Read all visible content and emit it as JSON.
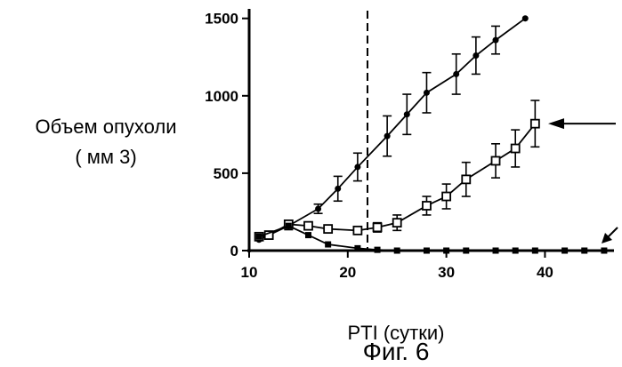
{
  "chart_data": {
    "type": "line",
    "title": "",
    "ylabel_line1": "Объем опухоли",
    "ylabel_line2": "( мм 3)",
    "xlabel": "PTI (сутки)",
    "caption": "Фиг. 6",
    "xlim": [
      10,
      47
    ],
    "ylim": [
      0,
      1550
    ],
    "xticks": [
      10,
      20,
      30,
      40
    ],
    "xtick_labels": [
      "10",
      "20",
      "30",
      "40"
    ],
    "yticks": [
      0,
      500,
      1000,
      1500
    ],
    "ytick_labels": [
      "0",
      "500",
      "1000",
      "1500"
    ],
    "grid": false,
    "legend": "none",
    "vline_x": 22,
    "series": [
      {
        "marker": "circle",
        "x": [
          11,
          12,
          14,
          17,
          19,
          21,
          24,
          26,
          28,
          31,
          33,
          35,
          38
        ],
        "y": [
          70,
          100,
          160,
          270,
          400,
          540,
          740,
          880,
          1020,
          1140,
          1260,
          1360,
          1500
        ],
        "err": [
          0,
          0,
          25,
          30,
          80,
          90,
          130,
          130,
          130,
          130,
          120,
          90,
          0
        ]
      },
      {
        "marker": "square",
        "x": [
          11,
          12,
          14,
          16,
          18,
          21,
          23,
          25,
          28,
          30,
          32,
          35,
          37,
          39
        ],
        "y": [
          90,
          100,
          170,
          160,
          140,
          130,
          150,
          180,
          290,
          350,
          460,
          580,
          660,
          820
        ],
        "err": [
          0,
          0,
          0,
          0,
          0,
          0,
          30,
          50,
          60,
          80,
          110,
          110,
          120,
          150
        ]
      },
      {
        "marker": "filled-square",
        "x": [
          11,
          14,
          16,
          18,
          21,
          23,
          25,
          28,
          30,
          32,
          35,
          37,
          39,
          42,
          44,
          46
        ],
        "y": [
          90,
          160,
          100,
          40,
          15,
          5,
          0,
          0,
          0,
          0,
          0,
          0,
          0,
          0,
          0,
          0
        ],
        "err": [
          0,
          0,
          0,
          0,
          0,
          0,
          0,
          0,
          0,
          0,
          0,
          0,
          0,
          0,
          0,
          0
        ]
      }
    ]
  }
}
